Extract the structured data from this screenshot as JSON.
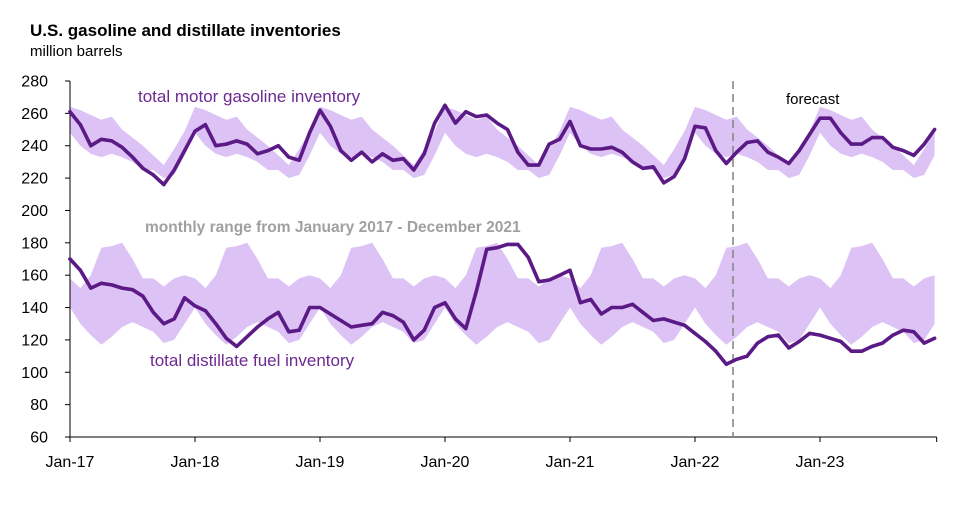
{
  "title": "U.S. gasoline and distillate inventories",
  "subtitle": "million barrels",
  "colors": {
    "line": "#5b1a85",
    "range_fill": "#dcc2f5",
    "forecast_line": "#888888",
    "annotation_text": "#6d2a91",
    "range_label_text": "#a0a0a0"
  },
  "annotations": {
    "gasoline": "total motor gasoline inventory",
    "range": "monthly range from January 2017 - December 2021",
    "distillate": "total distillate fuel inventory",
    "forecast": "forecast"
  },
  "chart_data": {
    "type": "line",
    "title": "U.S. gasoline and distillate inventories",
    "ylabel": "million barrels",
    "ylim": [
      60,
      280
    ],
    "yticks": [
      60,
      80,
      100,
      120,
      140,
      160,
      180,
      200,
      220,
      240,
      260,
      280
    ],
    "xlim": [
      "2017-01",
      "2023-12"
    ],
    "xtick_labels": [
      "Jan-17",
      "Jan-18",
      "Jan-19",
      "Jan-20",
      "Jan-21",
      "Jan-22",
      "Jan-23"
    ],
    "xtick_dates": [
      "2017-01",
      "2018-01",
      "2019-01",
      "2020-01",
      "2021-01",
      "2022-01",
      "2023-01"
    ],
    "forecast_start": "2022-05",
    "grid": false,
    "legend": "none",
    "x": [
      "2017-01",
      "2017-02",
      "2017-03",
      "2017-04",
      "2017-05",
      "2017-06",
      "2017-07",
      "2017-08",
      "2017-09",
      "2017-10",
      "2017-11",
      "2017-12",
      "2018-01",
      "2018-02",
      "2018-03",
      "2018-04",
      "2018-05",
      "2018-06",
      "2018-07",
      "2018-08",
      "2018-09",
      "2018-10",
      "2018-11",
      "2018-12",
      "2019-01",
      "2019-02",
      "2019-03",
      "2019-04",
      "2019-05",
      "2019-06",
      "2019-07",
      "2019-08",
      "2019-09",
      "2019-10",
      "2019-11",
      "2019-12",
      "2020-01",
      "2020-02",
      "2020-03",
      "2020-04",
      "2020-05",
      "2020-06",
      "2020-07",
      "2020-08",
      "2020-09",
      "2020-10",
      "2020-11",
      "2020-12",
      "2021-01",
      "2021-02",
      "2021-03",
      "2021-04",
      "2021-05",
      "2021-06",
      "2021-07",
      "2021-08",
      "2021-09",
      "2021-10",
      "2021-11",
      "2021-12",
      "2022-01",
      "2022-02",
      "2022-03",
      "2022-04",
      "2022-05",
      "2022-06",
      "2022-07",
      "2022-08",
      "2022-09",
      "2022-10",
      "2022-11",
      "2022-12",
      "2023-01",
      "2023-02",
      "2023-03",
      "2023-04",
      "2023-05",
      "2023-06",
      "2023-07",
      "2023-08",
      "2023-09",
      "2023-10",
      "2023-11",
      "2023-12"
    ],
    "series": [
      {
        "name": "total motor gasoline inventory",
        "values": [
          261,
          253,
          240,
          244,
          243,
          239,
          233,
          226,
          222,
          216,
          225,
          237,
          249,
          253,
          240,
          241,
          243,
          241,
          235,
          237,
          240,
          233,
          231,
          248,
          262,
          252,
          237,
          231,
          236,
          230,
          235,
          231,
          232,
          225,
          235,
          254,
          265,
          254,
          261,
          258,
          259,
          254,
          250,
          236,
          228,
          228,
          241,
          244,
          255,
          240,
          238,
          238,
          239,
          236,
          230,
          226,
          227,
          217,
          221,
          232,
          252,
          251,
          237,
          229,
          236,
          242,
          243,
          236,
          233,
          229,
          237,
          247,
          257,
          257,
          248,
          241,
          241,
          245,
          245,
          239,
          237,
          234,
          241,
          250
        ]
      },
      {
        "name": "total distillate fuel inventory",
        "values": [
          170,
          163,
          152,
          155,
          154,
          152,
          151,
          147,
          137,
          130,
          133,
          146,
          141,
          138,
          130,
          121,
          116,
          122,
          128,
          133,
          137,
          125,
          126,
          140,
          140,
          136,
          132,
          128,
          129,
          130,
          137,
          135,
          131,
          120,
          126,
          140,
          143,
          133,
          127,
          150,
          176,
          177,
          179,
          179,
          171,
          156,
          157,
          160,
          163,
          143,
          145,
          136,
          140,
          140,
          142,
          137,
          132,
          133,
          131,
          129,
          124,
          119,
          113,
          105,
          108,
          110,
          118,
          122,
          123,
          115,
          119,
          124,
          123,
          121,
          119,
          113,
          113,
          116,
          118,
          123,
          126,
          125,
          118,
          121
        ]
      }
    ],
    "ranges": [
      {
        "name": "monthly range from January 2017 - December 2021",
        "months": [
          "Jan",
          "Feb",
          "Mar",
          "Apr",
          "May",
          "Jun",
          "Jul",
          "Aug",
          "Sep",
          "Oct",
          "Nov",
          "Dec"
        ],
        "gasoline_min": [
          248,
          240,
          235,
          233,
          235,
          233,
          230,
          225,
          225,
          220,
          222,
          234
        ],
        "gasoline_max": [
          264,
          262,
          259,
          256,
          258,
          250,
          245,
          240,
          234,
          228,
          238,
          249
        ],
        "distillate_min": [
          140,
          130,
          123,
          117,
          122,
          128,
          131,
          128,
          125,
          118,
          120,
          130
        ],
        "distillate_max": [
          158,
          152,
          160,
          177,
          178,
          180,
          170,
          158,
          158,
          153,
          158,
          160
        ]
      }
    ]
  }
}
